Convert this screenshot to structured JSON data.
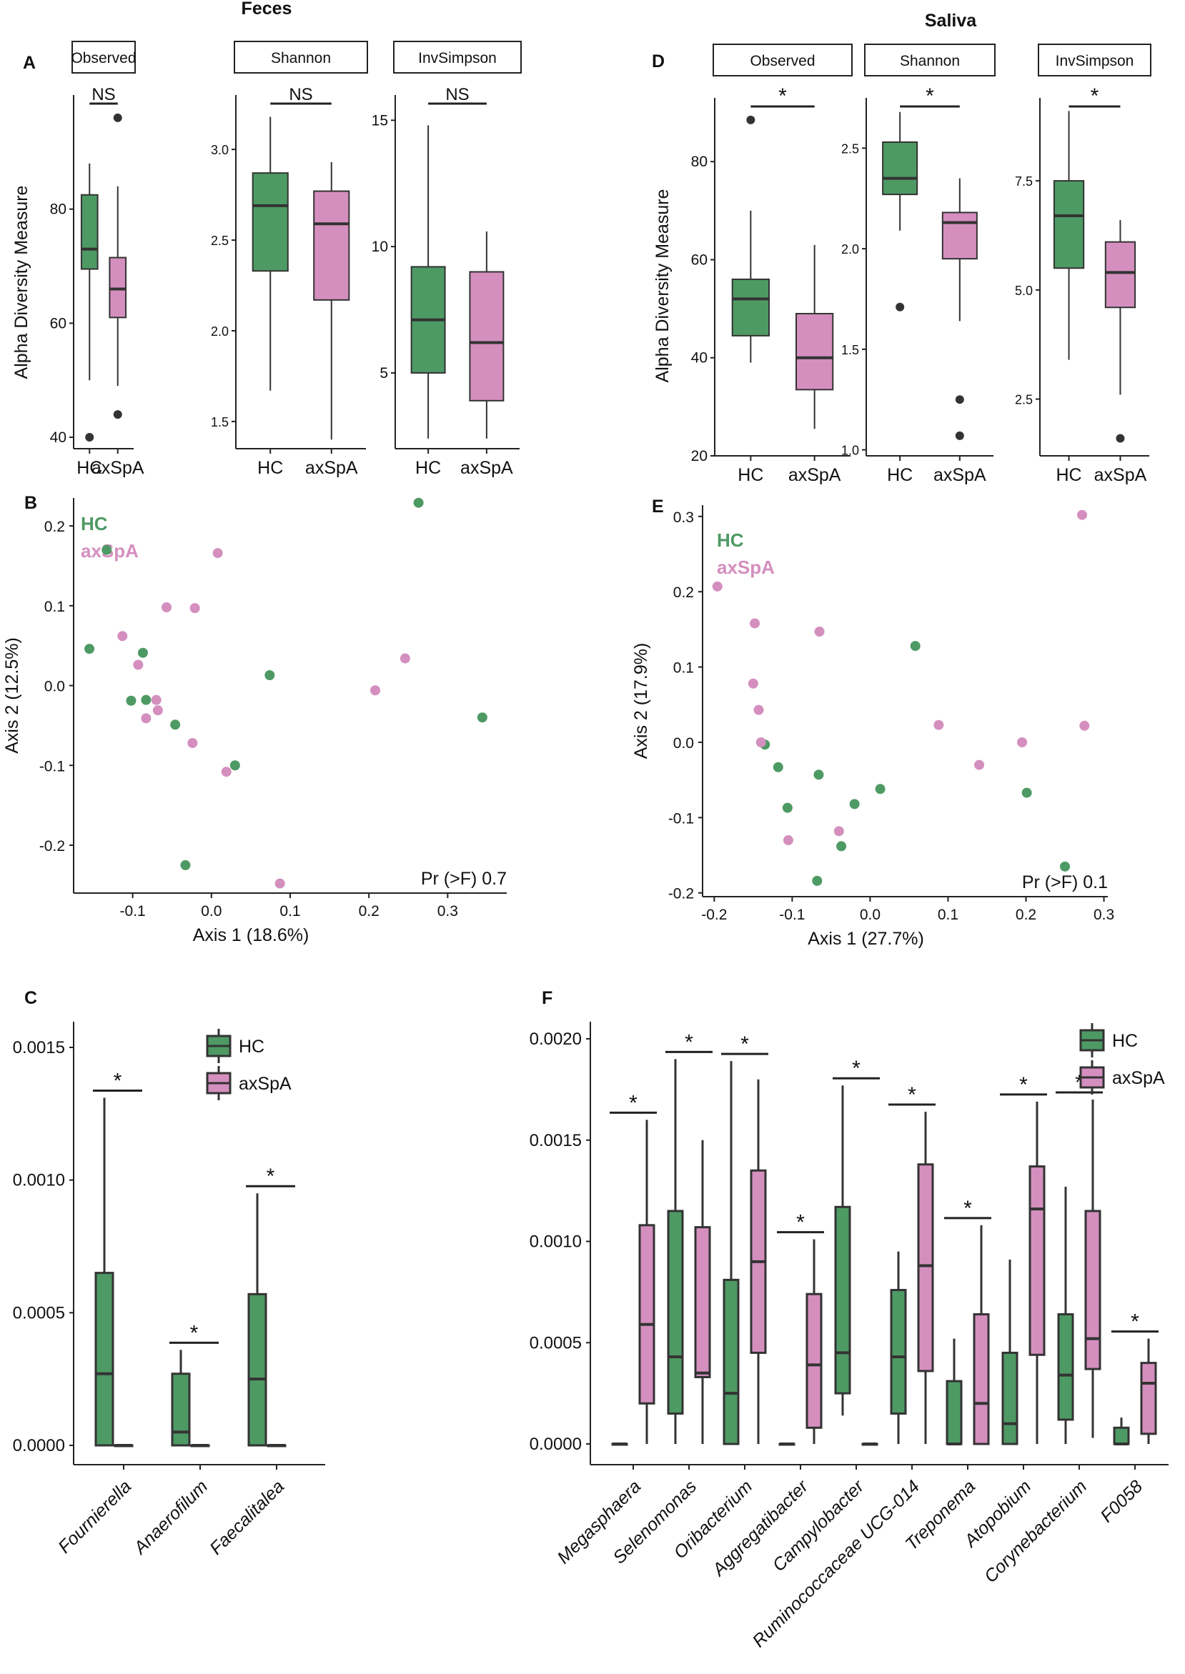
{
  "colors": {
    "hc": "#4e9a64",
    "axspa": "#d48fbf",
    "box_stroke": "#333333",
    "text": "#111111"
  },
  "titles": {
    "feces": "Feces",
    "saliva": "Saliva"
  },
  "panels": {
    "A": "A",
    "B": "B",
    "C": "C",
    "D": "D",
    "E": "E",
    "F": "F"
  },
  "chart_data": [
    {
      "id": "A",
      "type": "box",
      "title": "Feces",
      "ylabel": "Alpha Diversity Measure",
      "groups": [
        "HC",
        "axSpA"
      ],
      "facets": [
        {
          "name": "Observed",
          "ylim": [
            38,
            100
          ],
          "ticks": [
            40,
            60,
            80
          ],
          "tick_labels": [
            "40",
            "60",
            "80"
          ],
          "sig": "NS",
          "HC": {
            "lw": 50,
            "q1": 69.5,
            "med": 73,
            "q3": 82.5,
            "uw": 88,
            "out": [
              40
            ]
          },
          "axSpA": {
            "lw": 49,
            "q1": 61,
            "med": 66,
            "q3": 71.5,
            "uw": 84,
            "out": [
              44,
              96
            ]
          }
        },
        {
          "name": "Shannon",
          "ylim": [
            1.35,
            3.3
          ],
          "ticks": [
            1.5,
            2.0,
            2.5,
            3.0
          ],
          "tick_labels": [
            "1.5",
            "2.0",
            "2.5",
            "3.0"
          ],
          "sig": "NS",
          "HC": {
            "lw": 1.67,
            "q1": 2.33,
            "med": 2.69,
            "q3": 2.87,
            "uw": 3.18,
            "out": []
          },
          "axSpA": {
            "lw": 1.4,
            "q1": 2.17,
            "med": 2.59,
            "q3": 2.77,
            "uw": 2.93,
            "out": []
          }
        },
        {
          "name": "InvSimpson",
          "ylim": [
            2,
            16
          ],
          "ticks": [
            5,
            10,
            15
          ],
          "tick_labels": [
            "5",
            "10",
            "15"
          ],
          "sig": "NS",
          "HC": {
            "lw": 2.4,
            "q1": 5.0,
            "med": 7.1,
            "q3": 9.2,
            "uw": 14.8,
            "out": []
          },
          "axSpA": {
            "lw": 2.4,
            "q1": 3.9,
            "med": 6.2,
            "q3": 9.0,
            "uw": 10.6,
            "out": []
          }
        }
      ]
    },
    {
      "id": "D",
      "type": "box",
      "title": "Saliva",
      "ylabel": "Alpha Diversity Measure",
      "groups": [
        "HC",
        "axSpA"
      ],
      "facets": [
        {
          "name": "Observed",
          "ylim": [
            20,
            93
          ],
          "ticks": [
            20,
            40,
            60,
            80
          ],
          "tick_labels": [
            "20",
            "40",
            "60",
            "80"
          ],
          "sig": "*",
          "HC": {
            "lw": 39,
            "q1": 44.5,
            "med": 52,
            "q3": 56,
            "uw": 70,
            "out": [
              88.5
            ]
          },
          "axSpA": {
            "lw": 25.5,
            "q1": 33.5,
            "med": 40,
            "q3": 49,
            "uw": 63,
            "out": []
          }
        },
        {
          "name": "Shannon",
          "ylim": [
            0.97,
            2.75
          ],
          "ticks": [
            1.0,
            1.5,
            2.0,
            2.5
          ],
          "tick_labels": [
            "1.0",
            "1.5",
            "2.0",
            "2.5"
          ],
          "sig": "*",
          "HC": {
            "lw": 2.09,
            "q1": 2.27,
            "med": 2.35,
            "q3": 2.53,
            "uw": 2.68,
            "out": [
              1.71
            ]
          },
          "axSpA": {
            "lw": 1.64,
            "q1": 1.95,
            "med": 2.13,
            "q3": 2.18,
            "uw": 2.35,
            "out": [
              1.25,
              1.07
            ]
          }
        },
        {
          "name": "InvSimpson",
          "ylim": [
            1.2,
            9.4
          ],
          "ticks": [
            2.5,
            5.0,
            7.5
          ],
          "tick_labels": [
            "2.5",
            "5.0",
            "7.5"
          ],
          "sig": "*",
          "HC": {
            "lw": 3.4,
            "q1": 5.5,
            "med": 6.7,
            "q3": 7.5,
            "uw": 9.1,
            "out": []
          },
          "axSpA": {
            "lw": 2.6,
            "q1": 4.6,
            "med": 5.4,
            "q3": 6.1,
            "uw": 6.6,
            "out": [
              1.6
            ]
          }
        }
      ]
    },
    {
      "id": "B",
      "type": "scatter",
      "xlabel": "Axis 1 (18.6%)",
      "ylabel": "Axis 2 (12.5%)",
      "xlim": [
        -0.175,
        0.375
      ],
      "ylim": [
        -0.26,
        0.235
      ],
      "xticks": [
        -0.1,
        0.0,
        0.1,
        0.2,
        0.3
      ],
      "xtick_labels": [
        "-0.1",
        "0.0",
        "0.1",
        "0.2",
        "0.3"
      ],
      "yticks": [
        -0.2,
        -0.1,
        0.0,
        0.1,
        0.2
      ],
      "ytick_labels": [
        "-0.2",
        "-0.1",
        "0.0",
        "0.1",
        "0.2"
      ],
      "legend": [
        "HC",
        "axSpA"
      ],
      "annotation": "Pr (>F) 0.7",
      "HC": [
        [
          0.263,
          0.229
        ],
        [
          -0.133,
          0.17
        ],
        [
          -0.155,
          0.046
        ],
        [
          -0.087,
          0.041
        ],
        [
          -0.102,
          -0.019
        ],
        [
          -0.083,
          -0.018
        ],
        [
          0.074,
          0.013
        ],
        [
          0.344,
          -0.04
        ],
        [
          -0.046,
          -0.049
        ],
        [
          0.03,
          -0.1
        ],
        [
          -0.033,
          -0.225
        ]
      ],
      "axSpA": [
        [
          0.008,
          0.166
        ],
        [
          -0.057,
          0.098
        ],
        [
          -0.021,
          0.097
        ],
        [
          -0.113,
          0.062
        ],
        [
          -0.093,
          0.026
        ],
        [
          -0.07,
          -0.018
        ],
        [
          -0.068,
          -0.031
        ],
        [
          -0.083,
          -0.041
        ],
        [
          -0.024,
          -0.072
        ],
        [
          0.019,
          -0.108
        ],
        [
          0.246,
          0.034
        ],
        [
          0.208,
          -0.006
        ],
        [
          0.087,
          -0.248
        ]
      ]
    },
    {
      "id": "E",
      "type": "scatter",
      "xlabel": "Axis 1 (27.7%)",
      "ylabel": "Axis 2 (17.9%)",
      "xlim": [
        -0.215,
        0.305
      ],
      "ylim": [
        -0.205,
        0.315
      ],
      "xticks": [
        -0.2,
        -0.1,
        0.0,
        0.1,
        0.2,
        0.3
      ],
      "xtick_labels": [
        "-0.2",
        "-0.1",
        "0.0",
        "0.1",
        "0.2",
        "0.3"
      ],
      "yticks": [
        -0.2,
        -0.1,
        0.0,
        0.1,
        0.2,
        0.3
      ],
      "ytick_labels": [
        "-0.2",
        "-0.1",
        "0.0",
        "0.1",
        "0.2",
        "0.3"
      ],
      "legend": [
        "HC",
        "axSpA"
      ],
      "annotation": "Pr (>F) 0.1",
      "HC": [
        [
          0.058,
          0.128
        ],
        [
          -0.135,
          -0.003
        ],
        [
          -0.118,
          -0.033
        ],
        [
          -0.106,
          -0.087
        ],
        [
          -0.066,
          -0.043
        ],
        [
          -0.02,
          -0.082
        ],
        [
          0.013,
          -0.062
        ],
        [
          -0.037,
          -0.138
        ],
        [
          -0.068,
          -0.184
        ],
        [
          0.201,
          -0.067
        ],
        [
          0.25,
          -0.165
        ]
      ],
      "axSpA": [
        [
          0.272,
          0.302
        ],
        [
          -0.196,
          0.207
        ],
        [
          -0.148,
          0.158
        ],
        [
          -0.065,
          0.147
        ],
        [
          -0.15,
          0.078
        ],
        [
          -0.143,
          0.043
        ],
        [
          -0.14,
          0.0
        ],
        [
          0.088,
          0.023
        ],
        [
          0.275,
          0.022
        ],
        [
          0.14,
          -0.03
        ],
        [
          0.195,
          0.0
        ],
        [
          -0.04,
          -0.118
        ],
        [
          -0.105,
          -0.13
        ]
      ]
    },
    {
      "id": "C",
      "type": "box",
      "ylim": [
        -0.0001,
        0.00158
      ],
      "yticks": [
        0.0,
        0.0005,
        0.001,
        0.0015
      ],
      "ytick_labels": [
        "0.0000",
        "0.0005",
        "0.0010",
        "0.0015"
      ],
      "categories": [
        "Fournierella",
        "Anaerofilum",
        "Faecalitalea"
      ],
      "legend": [
        "HC",
        "axSpA"
      ],
      "sig": [
        "*",
        "*",
        "*"
      ],
      "HC": [
        {
          "lw": 0,
          "q1": 0,
          "med": 0.00027,
          "q3": 0.00065,
          "uw": 0.00131
        },
        {
          "lw": 0,
          "q1": 0,
          "med": 5e-05,
          "q3": 0.00027,
          "uw": 0.00036
        },
        {
          "lw": 0,
          "q1": 0,
          "med": 0.00025,
          "q3": 0.00057,
          "uw": 0.00095
        }
      ],
      "axSpA": [
        {
          "lw": 0,
          "q1": 0,
          "med": 0,
          "q3": 0,
          "uw": 0
        },
        {
          "lw": 0,
          "q1": 0,
          "med": 0,
          "q3": 0,
          "uw": 0
        },
        {
          "lw": 0,
          "q1": 0,
          "med": 0,
          "q3": 0,
          "uw": 0
        }
      ]
    },
    {
      "id": "F",
      "type": "box",
      "ylim": [
        -5e-05,
        0.0021
      ],
      "yticks": [
        0.0,
        0.0005,
        0.001,
        0.0015,
        0.002
      ],
      "ytick_labels": [
        "0.0000",
        "0.0005",
        "0.0010",
        "0.0015",
        "0.0020"
      ],
      "categories": [
        "Megasphaera",
        "Selenomonas",
        "Oribacterium",
        "Aggregatibacter",
        "Campylobacter",
        "Ruminococcaceae UCG-014",
        "Treponema",
        "Atopobium",
        "Corynebacterium",
        "F0058"
      ],
      "legend": [
        "HC",
        "axSpA"
      ],
      "sig": [
        "*",
        "*",
        "*",
        "*",
        "*",
        "*",
        "*",
        "*",
        "*",
        "*"
      ],
      "HC": [
        {
          "lw": 0,
          "q1": 0,
          "med": 0,
          "q3": 0,
          "uw": 0
        },
        {
          "lw": 0,
          "q1": 0.00015,
          "med": 0.00043,
          "q3": 0.00115,
          "uw": 0.0019
        },
        {
          "lw": 0,
          "q1": 0,
          "med": 0.00025,
          "q3": 0.00081,
          "uw": 0.00189
        },
        {
          "lw": 0,
          "q1": 0,
          "med": 0,
          "q3": 0,
          "uw": 0
        },
        {
          "lw": 0.00014,
          "q1": 0.00025,
          "med": 0.00045,
          "q3": 0.00117,
          "uw": 0.00177
        },
        {
          "lw": 0,
          "q1": 0.00015,
          "med": 0.00043,
          "q3": 0.00076,
          "uw": 0.00095
        },
        {
          "lw": 0,
          "q1": 0,
          "med": 0,
          "q3": 0.00031,
          "uw": 0.00052
        },
        {
          "lw": 0,
          "q1": 0,
          "med": 0.0001,
          "q3": 0.00045,
          "uw": 0.00091
        },
        {
          "lw": 0,
          "q1": 0.00012,
          "med": 0.00034,
          "q3": 0.00064,
          "uw": 0.00127
        },
        {
          "lw": 0,
          "q1": 0,
          "med": 0,
          "q3": 8e-05,
          "uw": 0.00013
        }
      ],
      "axSpA": [
        {
          "lw": 0,
          "q1": 0.0002,
          "med": 0.00059,
          "q3": 0.00108,
          "uw": 0.0016
        },
        {
          "lw": 0,
          "q1": 0.00033,
          "med": 0.00035,
          "q3": 0.00107,
          "uw": 0.0015
        },
        {
          "lw": 0,
          "q1": 0.00045,
          "med": 0.0009,
          "q3": 0.00135,
          "uw": 0.0018
        },
        {
          "lw": 0,
          "q1": 8e-05,
          "med": 0.00039,
          "q3": 0.00074,
          "uw": 0.00101
        },
        {
          "lw": 0,
          "q1": 0,
          "med": 0,
          "q3": 0,
          "uw": 0
        },
        {
          "lw": 0,
          "q1": 0.00036,
          "med": 0.00088,
          "q3": 0.00138,
          "uw": 0.00164
        },
        {
          "lw": 0,
          "q1": 0,
          "med": 0.0002,
          "q3": 0.00064,
          "uw": 0.00108
        },
        {
          "lw": 0,
          "q1": 0.00044,
          "med": 0.00116,
          "q3": 0.00137,
          "uw": 0.00169
        },
        {
          "lw": 3e-05,
          "q1": 0.00037,
          "med": 0.00052,
          "q3": 0.00115,
          "uw": 0.0017
        },
        {
          "lw": 0,
          "q1": 5e-05,
          "med": 0.0003,
          "q3": 0.0004,
          "uw": 0.00052
        }
      ]
    }
  ]
}
